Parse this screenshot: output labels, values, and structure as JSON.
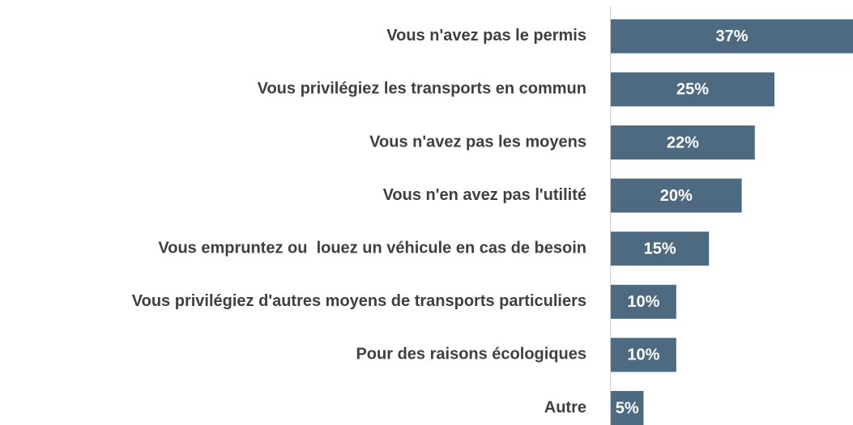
{
  "chart_data": {
    "type": "bar",
    "orientation": "horizontal",
    "categories": [
      "Vous n'avez pas le permis",
      "Vous privilégiez les transports en commun",
      "Vous n'avez pas les moyens",
      "Vous n'en avez pas l'utilité",
      "Vous empruntez ou  louez un véhicule en cas de besoin",
      "Vous privilégiez d'autres moyens de transports particuliers",
      "Pour des raisons écologiques",
      "Autre"
    ],
    "values": [
      37,
      25,
      22,
      20,
      15,
      10,
      10,
      5
    ],
    "value_labels": [
      "37%",
      "25%",
      "22%",
      "20%",
      "15%",
      "10%",
      "10%",
      "5%"
    ],
    "color": "#4d6a80",
    "xlim": [
      0,
      37
    ]
  }
}
